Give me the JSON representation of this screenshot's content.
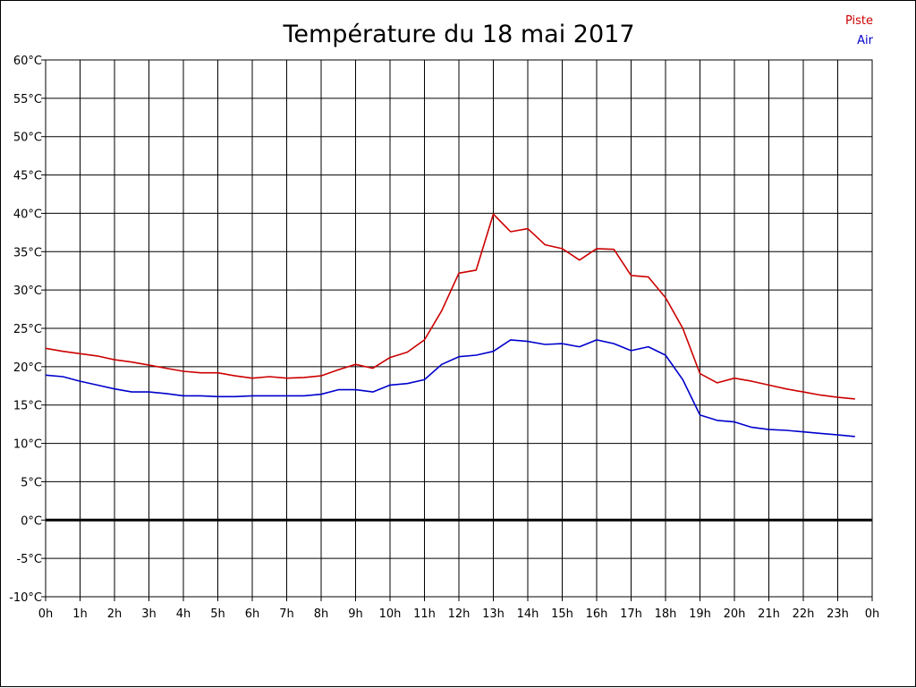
{
  "chart_data": {
    "type": "line",
    "title": "Température du 18 mai 2017",
    "xlabel": "",
    "ylabel": "",
    "x_unit": "hour",
    "x_tick_labels": [
      "0h",
      "1h",
      "2h",
      "3h",
      "4h",
      "5h",
      "6h",
      "7h",
      "8h",
      "9h",
      "10h",
      "11h",
      "12h",
      "13h",
      "14h",
      "15h",
      "16h",
      "17h",
      "18h",
      "19h",
      "20h",
      "21h",
      "22h",
      "23h",
      "0h"
    ],
    "y_tick_labels": [
      "60°C",
      "55°C",
      "50°C",
      "45°C",
      "40°C",
      "35°C",
      "30°C",
      "25°C",
      "20°C",
      "15°C",
      "10°C",
      "5°C",
      "0°C",
      "-5°C",
      "-10°C"
    ],
    "xlim": [
      0,
      24
    ],
    "ylim": [
      -10,
      60
    ],
    "grid": true,
    "legend_position": "top-right",
    "x": [
      0,
      0.5,
      1,
      1.5,
      2,
      2.5,
      3,
      3.5,
      4,
      4.5,
      5,
      5.5,
      6,
      6.5,
      7,
      7.5,
      8,
      8.5,
      9,
      9.5,
      10,
      10.5,
      11,
      11.5,
      12,
      12.5,
      13,
      13.5,
      14,
      14.5,
      15,
      15.5,
      16,
      16.5,
      17,
      17.5,
      18,
      18.5,
      19,
      19.5,
      20,
      20.5,
      21,
      21.5,
      22,
      22.5,
      23,
      23.5
    ],
    "series": [
      {
        "name": "Piste",
        "color": "#cc0000",
        "values": [
          22.4,
          22.0,
          21.7,
          21.4,
          20.9,
          20.6,
          20.2,
          19.8,
          19.4,
          19.2,
          19.2,
          18.8,
          18.5,
          18.7,
          18.5,
          18.6,
          18.8,
          19.6,
          20.3,
          19.8,
          21.2,
          21.9,
          23.5,
          27.3,
          32.2,
          32.6,
          39.9,
          37.6,
          38.0,
          35.9,
          35.4,
          33.9,
          35.4,
          35.3,
          31.9,
          31.7,
          29.0,
          25.0,
          19.1,
          17.9,
          18.5,
          18.1,
          17.6,
          17.1,
          16.7,
          16.3,
          16.0,
          15.8
        ]
      },
      {
        "name": "Air",
        "color": "#0000cc",
        "values": [
          18.9,
          18.7,
          18.1,
          17.6,
          17.1,
          16.7,
          16.7,
          16.5,
          16.2,
          16.2,
          16.1,
          16.1,
          16.2,
          16.2,
          16.2,
          16.2,
          16.4,
          17.0,
          17.0,
          16.7,
          17.6,
          17.8,
          18.3,
          20.3,
          21.3,
          21.5,
          22.0,
          23.5,
          23.3,
          22.9,
          23.0,
          22.6,
          23.5,
          23.0,
          22.1,
          22.6,
          21.5,
          18.3,
          13.7,
          13.0,
          12.8,
          12.1,
          11.8,
          11.7,
          11.5,
          11.3,
          11.1,
          10.9
        ]
      }
    ],
    "zero_line": true
  }
}
